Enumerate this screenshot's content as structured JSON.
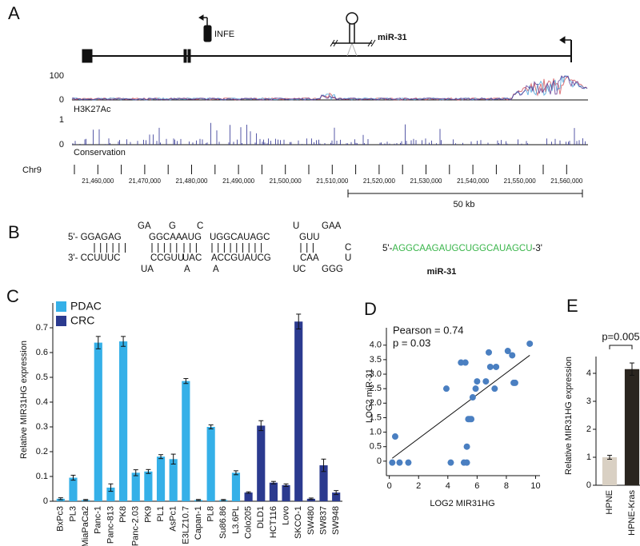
{
  "panel_labels": [
    "A",
    "B",
    "C",
    "D",
    "E"
  ],
  "panel_a": {
    "gene_labels": [
      "INFE",
      "miR-31"
    ],
    "tracks": [
      {
        "name": "H3K27Ac",
        "ymin": 0,
        "ymax": 100
      },
      {
        "name": "Conservation",
        "ymin": 0,
        "ymax": 1
      }
    ],
    "chromosome": "Chr9",
    "coordinates": [
      "21,460,000",
      "21,470,000",
      "21,480,000",
      "21,490,000",
      "21,500,000",
      "21,510,000",
      "21,520,000",
      "21,530,000",
      "21,540,000",
      "21,550,000",
      "21,560,000"
    ],
    "scale_bar": "50 kb"
  },
  "panel_b": {
    "hairpin": [
      [
        {
          "text": "G",
          "color": "#111111"
        },
        {
          "text": "A",
          "color": "#39b54a"
        },
        {
          "text": "G",
          "color": "#39b54a"
        },
        {
          "text": "C",
          "color": "#39b54a"
        },
        {
          "text": "U",
          "color": "#39b54a"
        },
        {
          "text": "GAA",
          "color": "#111111"
        }
      ],
      [
        {
          "text": "5'- GGAGAG",
          "color": "#111111"
        },
        {
          "text": "GGCAA",
          "color": "#39b54a"
        },
        {
          "text": "AUG",
          "color": "#39b54a"
        },
        {
          "text": "UGGCAUAGC",
          "color": "#39b54a"
        },
        {
          "text": "GUU",
          "color": "#111111"
        },
        {
          "text": "C",
          "color": "#111111"
        }
      ],
      [
        {
          "text": "3'- CCUUUC",
          "color": "#111111"
        },
        {
          "text": "CCGUU",
          "color": "#9a9a9a"
        },
        {
          "text": "UAC",
          "color": "#9a9a9a"
        },
        {
          "text": "ACCGUAUCG",
          "color": "#9a9a9a"
        },
        {
          "text": "CAA",
          "color": "#111111"
        },
        {
          "text": "U",
          "color": "#111111"
        }
      ],
      [
        {
          "text": "UA",
          "color": "#9a9a9a"
        },
        {
          "text": "A",
          "color": "#9a9a9a"
        },
        {
          "text": "A",
          "color": "#9a9a9a"
        },
        {
          "text": "U",
          "color": "#9a9a9a"
        },
        {
          "text": "C",
          "color": "#111111"
        },
        {
          "text": "GGG",
          "color": "#111111"
        }
      ]
    ],
    "mature": {
      "prefix": "5'-",
      "sequence": "AGGCAAGAUGCUGGCAUAGCU",
      "suffix": "-3'",
      "color": "#39b54a",
      "label": "miR-31"
    }
  },
  "chart_data": [
    {
      "type": "bar",
      "y_label": "Relative MIR31HG expression",
      "categories": [
        "BxPc3",
        "PL3",
        "MiaPaCa2",
        "Panc-1",
        "Panc-813",
        "PK8",
        "Panc-2.03",
        "PK9",
        "PL1",
        "AsPc1",
        "E3LZ10.7",
        "Capan-1",
        "PL8",
        "Su86.86",
        "L3.6PL",
        "Colo205",
        "DLD1",
        "HCT116",
        "Lovo",
        "SKCO-1",
        "SW480",
        "SW837",
        "SW948"
      ],
      "series": [
        {
          "name": "PDAC",
          "color": "#35b0e8",
          "values": [
            0.01,
            0.095,
            0.005,
            0.64,
            0.055,
            0.645,
            0.115,
            0.12,
            0.18,
            0.17,
            0.485,
            0.005,
            0.3,
            0.005,
            0.115,
            null,
            null,
            null,
            null,
            null,
            null,
            null,
            null
          ],
          "errors": [
            0.004,
            0.01,
            0.002,
            0.025,
            0.015,
            0.02,
            0.012,
            0.008,
            0.008,
            0.02,
            0.01,
            0.002,
            0.008,
            0.002,
            0.008,
            null,
            null,
            null,
            null,
            null,
            null,
            null,
            null
          ]
        },
        {
          "name": "CRC",
          "color": "#2b3a8f",
          "values": [
            null,
            null,
            null,
            null,
            null,
            null,
            null,
            null,
            null,
            null,
            null,
            null,
            null,
            null,
            null,
            0.035,
            0.305,
            0.075,
            0.065,
            0.725,
            0.01,
            0.145,
            0.035
          ],
          "errors": [
            null,
            null,
            null,
            null,
            null,
            null,
            null,
            null,
            null,
            null,
            null,
            null,
            null,
            null,
            null,
            0.003,
            0.02,
            0.005,
            0.005,
            0.03,
            0.003,
            0.025,
            0.008
          ]
        }
      ],
      "ylim": [
        0,
        0.8
      ],
      "yticks": [
        0,
        0.1,
        0.2,
        0.3,
        0.4,
        0.5,
        0.6,
        0.7
      ],
      "legend": "top-left"
    },
    {
      "type": "scatter",
      "x_label": "LOG2 MIR31HG",
      "y_label": "LOG2 miR-31",
      "annotations": [
        "Pearson = 0.74",
        "p = 0.03"
      ],
      "x": [
        0.2,
        0.4,
        0.7,
        1.3,
        3.9,
        4.2,
        4.9,
        5.2,
        5.1,
        5.3,
        5.3,
        5.4,
        5.5,
        5.6,
        5.7,
        5.9,
        6.0,
        6.6,
        6.8,
        6.9,
        7.2,
        7.3,
        8.1,
        8.4,
        8.5,
        8.6,
        9.6
      ],
      "series": [
        {
          "color": "#4a7fc1",
          "values": [
            -0.05,
            0.85,
            -0.05,
            -0.05,
            2.5,
            -0.05,
            3.4,
            3.4,
            -0.05,
            -0.05,
            0.5,
            1.45,
            1.45,
            1.45,
            2.2,
            2.5,
            2.75,
            2.75,
            3.75,
            3.25,
            2.5,
            3.25,
            3.8,
            3.65,
            2.7,
            2.7,
            4.05
          ]
        }
      ],
      "fit": {
        "x": [
          0.2,
          9.6
        ],
        "values": [
          0.1,
          3.65
        ],
        "color": "#111111"
      },
      "xlim": [
        -0.2,
        10.3
      ],
      "ylim": [
        -0.5,
        4.6
      ],
      "xticks": [
        0,
        2,
        4,
        6,
        8,
        10
      ],
      "yticks": [
        0,
        0.5,
        {
          "value": 1,
          "label": "1.0"
        },
        1.5,
        {
          "value": 2,
          "label": "2.0"
        },
        2.5,
        {
          "value": 3,
          "label": "3.0"
        },
        3.5,
        {
          "value": 4,
          "label": "4.0"
        }
      ]
    },
    {
      "type": "bar",
      "y_label": "Relative MIR31HG expression",
      "categories": [
        "HPNE",
        "HPNE-Kras"
      ],
      "values": [
        1.0,
        4.15
      ],
      "errors": [
        0.07,
        0.22
      ],
      "colors": [
        "#d9d0c3",
        "#2a251f"
      ],
      "ylim": [
        0,
        4.6
      ],
      "yticks": [
        0,
        1,
        2,
        3,
        4
      ],
      "annotation": "p=0.005"
    }
  ]
}
